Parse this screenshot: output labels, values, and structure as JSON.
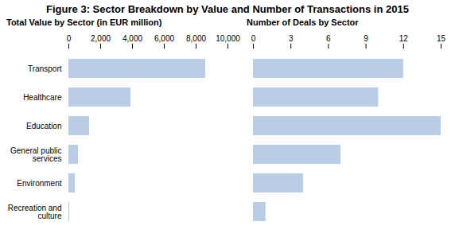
{
  "title": "Figure 3: Sector Breakdown by Value and Number of Transactions in 2015",
  "chart_data": [
    {
      "type": "bar",
      "title": "Total Value by Sector (in EUR million)",
      "orientation": "horizontal",
      "categories": [
        "Transport",
        "Healthcare",
        "Education",
        "General public services",
        "Environment",
        "Recreation and culture"
      ],
      "values": [
        8600,
        3900,
        1300,
        600,
        400,
        50
      ],
      "color": "#b9cde5",
      "xlim": [
        0,
        10000
      ],
      "xticks": [
        0,
        {
          "value": 2000,
          "label": "2,000"
        },
        {
          "value": 4000,
          "label": "4,000"
        },
        {
          "value": 6000,
          "label": "6,000"
        },
        {
          "value": 8000,
          "label": "8,000"
        },
        {
          "value": 10000,
          "label": "10,000"
        }
      ],
      "grid": false
    },
    {
      "type": "bar",
      "title": "Number of Deals by Sector",
      "orientation": "horizontal",
      "categories": [
        "Transport",
        "Healthcare",
        "Education",
        "General public services",
        "Environment",
        "Recreation and culture"
      ],
      "values": [
        12,
        10,
        15,
        7,
        4,
        1
      ],
      "color": "#b9cde5",
      "xlim": [
        0,
        15
      ],
      "xticks": [
        0,
        3,
        6,
        9,
        12,
        15
      ],
      "grid": false,
      "tick_labels": "x"
    }
  ]
}
